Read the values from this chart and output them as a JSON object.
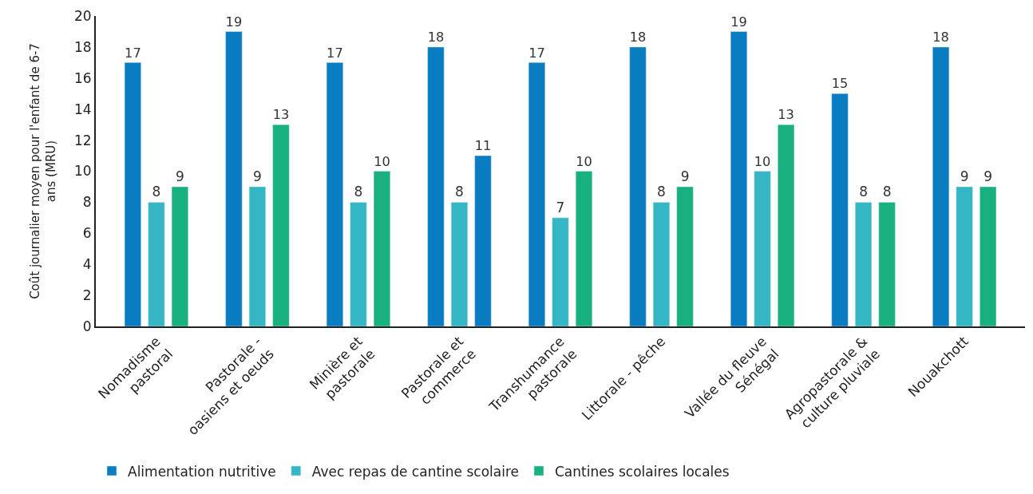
{
  "chart_data": {
    "type": "bar",
    "ylabel": "Coût journalier moyen pour l'enfant de 6-7\nans (MRU)",
    "categories": [
      "Nomadisme\npastoral",
      "Pastorale -\noasiens et oeuds",
      "Minière et\npastorale",
      "Pastorale et\ncommerce",
      "Transhumance\npastorale",
      "Littorale - pêche",
      "Vallée du fleuve\nSénégal",
      "Agropastorale &\nculture pluviale",
      "Nouakchott"
    ],
    "series": [
      {
        "name": "Alimentation nutritive",
        "color": "#0a7dc2",
        "values": [
          17,
          19,
          17,
          18,
          17,
          18,
          19,
          15,
          18
        ]
      },
      {
        "name": "Avec repas de cantine scolaire",
        "color": "#35b6c4",
        "values": [
          8,
          9,
          8,
          8,
          7,
          8,
          10,
          8,
          9
        ]
      },
      {
        "name": "Cantines scolaires locales",
        "color": "#17b07e",
        "colors": [
          "#17b07e",
          "#17b07e",
          "#17b07e",
          "#0a7dc2",
          "#17b07e",
          "#17b07e",
          "#17b07e",
          "#17b07e",
          "#17b07e"
        ],
        "values": [
          9,
          13,
          10,
          11,
          10,
          9,
          13,
          8,
          9
        ]
      }
    ],
    "ylim": [
      0,
      20
    ],
    "yticks": [
      0,
      2,
      4,
      6,
      8,
      10,
      12,
      14,
      16,
      18,
      20
    ],
    "data_labels": true,
    "legend": "bottom"
  }
}
